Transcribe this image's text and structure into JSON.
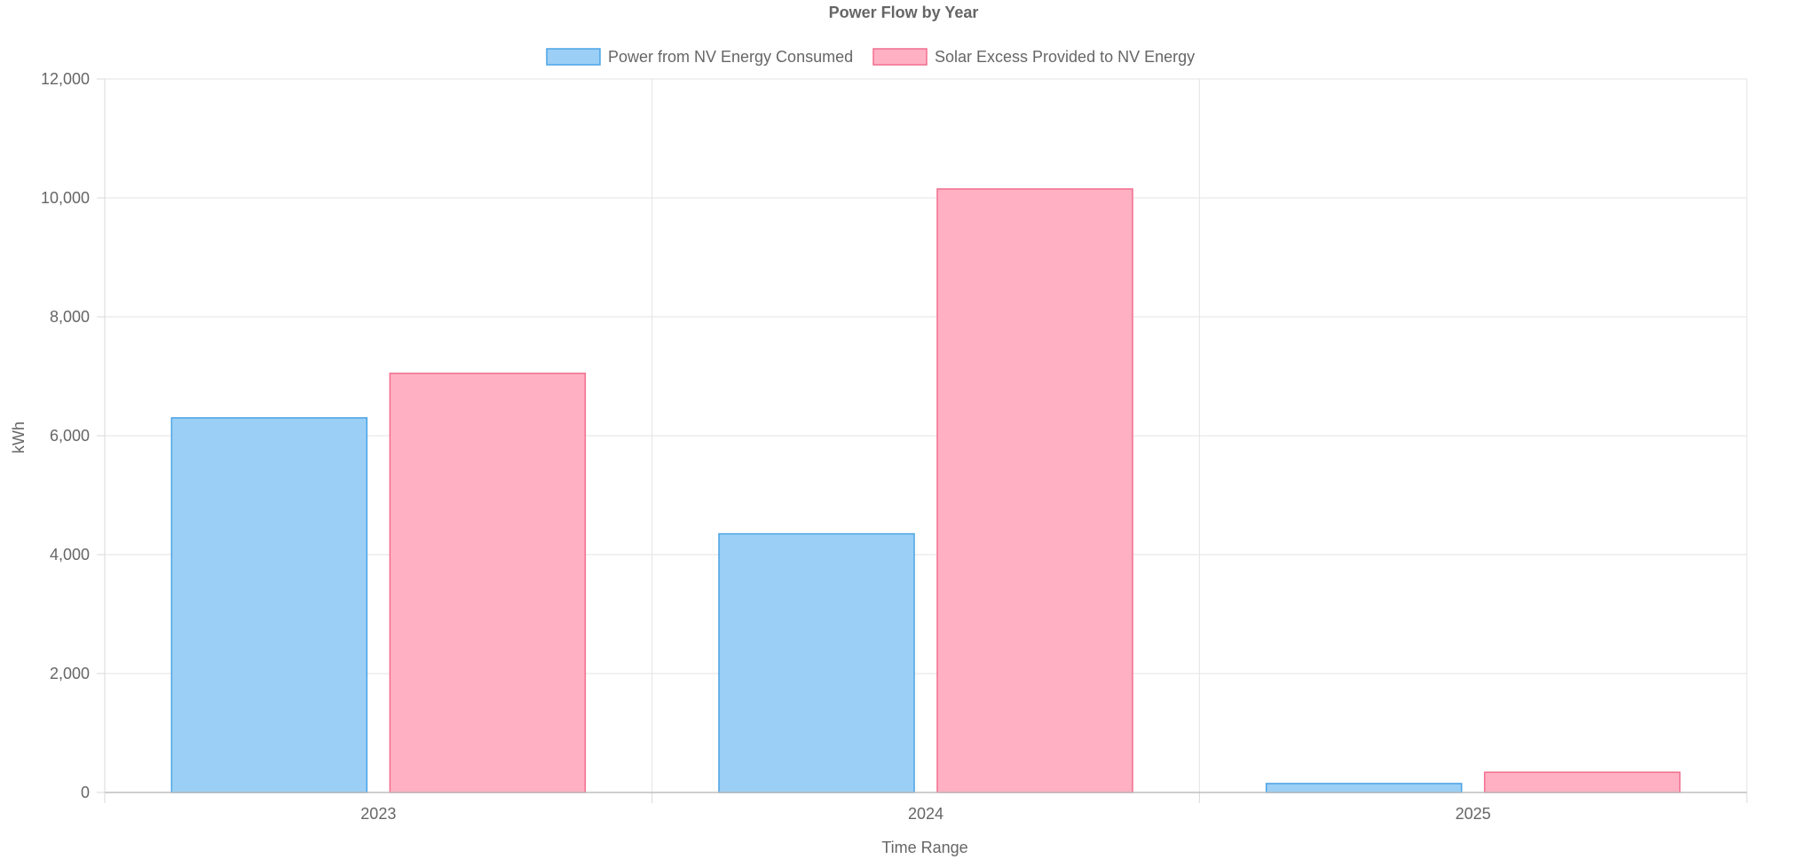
{
  "chart_data": {
    "type": "bar",
    "title": "Power Flow by Year",
    "xlabel": "Time Range",
    "ylabel": "kWh",
    "categories": [
      "2023",
      "2024",
      "2025"
    ],
    "series": [
      {
        "name": "Power from NV Energy Consumed",
        "values": [
          6300,
          4350,
          150
        ],
        "fill": "#9ccff5",
        "stroke": "#4aa3e6"
      },
      {
        "name": "Solar Excess Provided to NV Energy",
        "values": [
          7050,
          10150,
          340
        ],
        "fill": "#ffb1c3",
        "stroke": "#f26d8e"
      }
    ],
    "ylim": [
      0,
      12000
    ],
    "yticks": [
      0,
      2000,
      4000,
      6000,
      8000,
      10000,
      12000
    ],
    "ytick_labels": [
      "0",
      "2,000",
      "4,000",
      "6,000",
      "8,000",
      "10,000",
      "12,000"
    ],
    "grid": true,
    "legend_position": "top-center"
  }
}
